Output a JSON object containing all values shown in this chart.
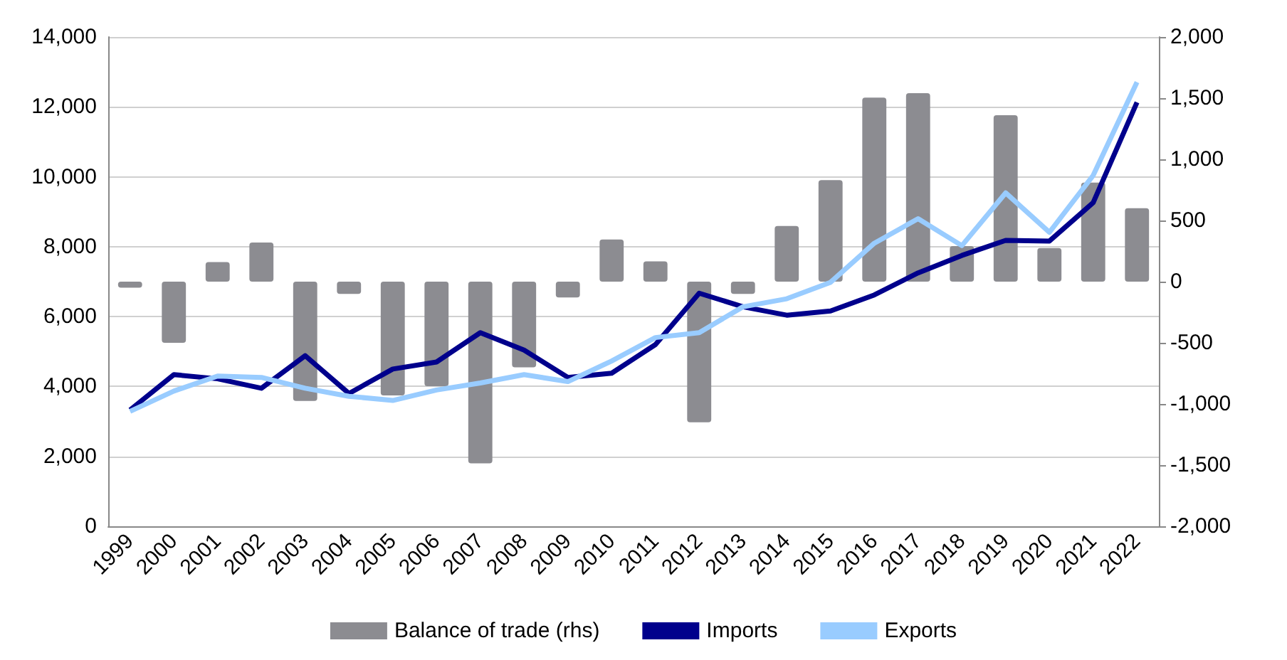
{
  "chart_data": {
    "type": "line",
    "categories": [
      "1999",
      "2000",
      "2001",
      "2002",
      "2003",
      "2004",
      "2005",
      "2006",
      "2007",
      "2008",
      "2009",
      "2010",
      "2011",
      "2012",
      "2013",
      "2014",
      "2015",
      "2016",
      "2017",
      "2018",
      "2019",
      "2020",
      "2021",
      "2022"
    ],
    "series": [
      {
        "name": "Balance of trade (rhs)",
        "type": "bar",
        "axis": "y2",
        "color": "#8c8c91",
        "values": [
          -50,
          -500,
          160,
          320,
          -975,
          -100,
          -930,
          -855,
          -1485,
          -700,
          -130,
          345,
          165,
          -1150,
          -100,
          455,
          830,
          1505,
          1540,
          290,
          1360,
          275,
          810,
          600
        ]
      },
      {
        "name": "Imports",
        "color": "#00008c",
        "values": [
          3330,
          4340,
          4220,
          3950,
          4880,
          3800,
          4500,
          4700,
          5540,
          5040,
          4260,
          4380,
          5200,
          6670,
          6280,
          6040,
          6160,
          6620,
          7250,
          7750,
          8180,
          8160,
          9260,
          12130
        ]
      },
      {
        "name": "Exports",
        "color": "#99ccff",
        "values": [
          3290,
          3870,
          4300,
          4260,
          3950,
          3720,
          3600,
          3900,
          4100,
          4340,
          4140,
          4730,
          5400,
          5540,
          6280,
          6510,
          6980,
          8100,
          8800,
          8030,
          9540,
          8410,
          10040,
          12710
        ]
      }
    ],
    "ylim": [
      0,
      14000
    ],
    "yticks": [
      {
        "value": 0,
        "label": "0"
      },
      {
        "value": 2000,
        "label": "2,000"
      },
      {
        "value": 4000,
        "label": "4,000"
      },
      {
        "value": 6000,
        "label": "6,000"
      },
      {
        "value": 8000,
        "label": "8,000"
      },
      {
        "value": 10000,
        "label": "10,000"
      },
      {
        "value": 12000,
        "label": "12,000"
      },
      {
        "value": 14000,
        "label": "14,000"
      }
    ],
    "y2lim": [
      -2000,
      2000
    ],
    "y2ticks": [
      {
        "value": -2000,
        "label": "-2,000"
      },
      {
        "value": -1500,
        "label": "-1,500"
      },
      {
        "value": -1000,
        "label": "-1,000"
      },
      {
        "value": -500,
        "label": "-500"
      },
      {
        "value": 0,
        "label": "0"
      },
      {
        "value": 500,
        "label": "500"
      },
      {
        "value": 1000,
        "label": "1,000"
      },
      {
        "value": 1500,
        "label": "1,500"
      },
      {
        "value": 2000,
        "label": "2,000"
      }
    ],
    "grid": "y",
    "legend": "bottom",
    "marker": "none",
    "line_style": "solid"
  }
}
